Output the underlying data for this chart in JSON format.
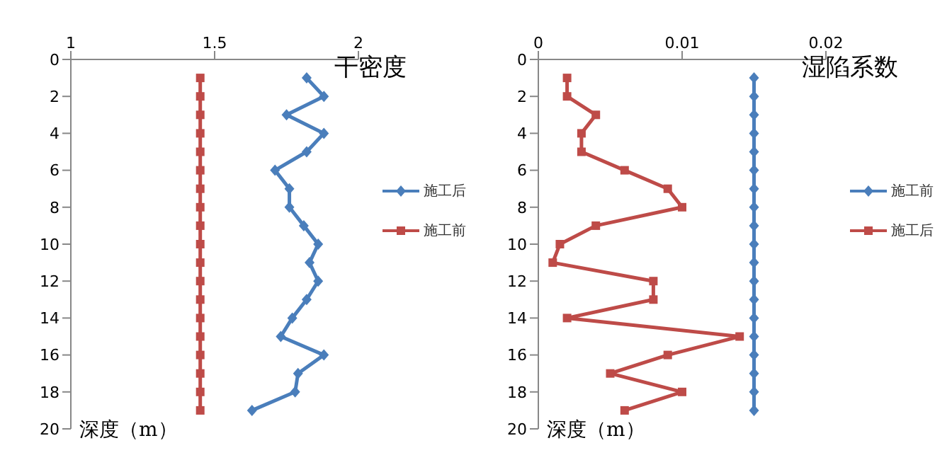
{
  "chart_data": [
    {
      "type": "line",
      "title": "干密度",
      "annotations": [
        "深度（m）"
      ],
      "xlim": [
        1,
        2
      ],
      "xticks": [
        1,
        1.5,
        2
      ],
      "ylim": [
        20,
        0
      ],
      "yticks": [
        0,
        2,
        4,
        6,
        8,
        10,
        12,
        14,
        16,
        18,
        20
      ],
      "legend": "right",
      "grid": false,
      "series": [
        {
          "name": "施工后",
          "color": "#4a7ebb",
          "marker": "diamond",
          "x": [
            1.82,
            1.88,
            1.75,
            1.88,
            1.82,
            1.71,
            1.76,
            1.76,
            1.81,
            1.86,
            1.83,
            1.86,
            1.82,
            1.77,
            1.73,
            1.88,
            1.79,
            1.78,
            1.63
          ],
          "values": [
            1,
            2,
            3,
            4,
            5,
            6,
            7,
            8,
            9,
            10,
            11,
            12,
            13,
            14,
            15,
            16,
            17,
            18,
            19
          ]
        },
        {
          "name": "施工前",
          "color": "#be4b48",
          "marker": "square",
          "x": [
            1.45,
            1.45,
            1.45,
            1.45,
            1.45,
            1.45,
            1.45,
            1.45,
            1.45,
            1.45,
            1.45,
            1.45,
            1.45,
            1.45,
            1.45,
            1.45,
            1.45,
            1.45,
            1.45
          ],
          "values": [
            1,
            2,
            3,
            4,
            5,
            6,
            7,
            8,
            9,
            10,
            11,
            12,
            13,
            14,
            15,
            16,
            17,
            18,
            19
          ]
        }
      ]
    },
    {
      "type": "line",
      "title": "湿陷系数",
      "annotations": [
        "深度（m）"
      ],
      "xlim": [
        0,
        0.02
      ],
      "xticks": [
        0,
        0.01,
        0.02
      ],
      "ylim": [
        20,
        0
      ],
      "yticks": [
        0,
        2,
        4,
        6,
        8,
        10,
        12,
        14,
        16,
        18,
        20
      ],
      "legend": "right",
      "grid": false,
      "series": [
        {
          "name": "施工前",
          "color": "#4a7ebb",
          "marker": "diamond",
          "x": [
            0.015,
            0.015,
            0.015,
            0.015,
            0.015,
            0.015,
            0.015,
            0.015,
            0.015,
            0.015,
            0.015,
            0.015,
            0.015,
            0.015,
            0.015,
            0.015,
            0.015,
            0.015,
            0.015
          ],
          "values": [
            1,
            2,
            3,
            4,
            5,
            6,
            7,
            8,
            9,
            10,
            11,
            12,
            13,
            14,
            15,
            16,
            17,
            18,
            19
          ]
        },
        {
          "name": "施工后",
          "color": "#be4b48",
          "marker": "square",
          "x": [
            0.002,
            0.002,
            0.004,
            0.003,
            0.003,
            0.006,
            0.009,
            0.01,
            0.004,
            0.0015,
            0.001,
            0.008,
            0.008,
            0.002,
            0.014,
            0.009,
            0.005,
            0.01,
            0.006
          ],
          "values": [
            1,
            2,
            3,
            4,
            5,
            6,
            7,
            8,
            9,
            10,
            11,
            12,
            13,
            14,
            15,
            16,
            17,
            18,
            19
          ]
        }
      ]
    }
  ]
}
